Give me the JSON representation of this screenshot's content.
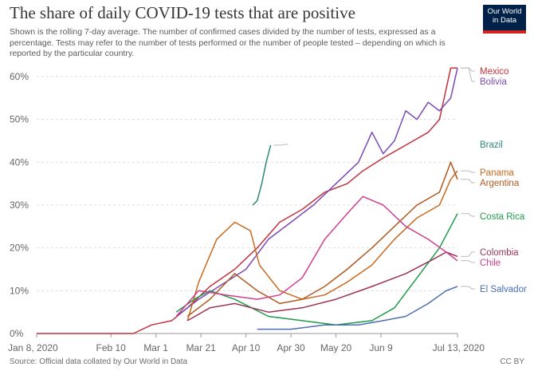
{
  "header": {
    "title": "The share of daily COVID-19 tests that are positive",
    "subtitle": "Shown is the rolling 7-day average. The number of confirmed cases divided by the number of tests, expressed as a percentage. Tests may refer to the number of tests performed or the number of people tested – depending on which is reported by the particular country."
  },
  "logo": {
    "line1": "Our World",
    "line2": "in Data"
  },
  "footer": {
    "source": "Source: Official data collated by Our World in Data",
    "license": "CC BY"
  },
  "chart_data": {
    "type": "line",
    "title": "The share of daily COVID-19 tests that are positive",
    "xlabel": "",
    "ylabel": "",
    "x_ticks": [
      "Jan 8, 2020",
      "Feb 10",
      "Mar 1",
      "Mar 21",
      "Apr 10",
      "Apr 30",
      "May 20",
      "Jun 9",
      "Jul 13, 2020"
    ],
    "y_ticks": [
      "0%",
      "10%",
      "20%",
      "30%",
      "40%",
      "50%",
      "60%"
    ],
    "ylim": [
      0,
      60
    ],
    "grid": "horizontal dashed",
    "legend": "direct labels at right",
    "series": [
      {
        "name": "Mexico",
        "color": "#c2323b",
        "points": [
          [
            "2020-01-08",
            0
          ],
          [
            "2020-02-20",
            0
          ],
          [
            "2020-02-28",
            2
          ],
          [
            "2020-03-08",
            3
          ],
          [
            "2020-03-15",
            6
          ],
          [
            "2020-03-25",
            11
          ],
          [
            "2020-04-05",
            15
          ],
          [
            "2020-04-15",
            20
          ],
          [
            "2020-04-25",
            26
          ],
          [
            "2020-05-05",
            29
          ],
          [
            "2020-05-15",
            33
          ],
          [
            "2020-05-25",
            35
          ],
          [
            "2020-06-01",
            38
          ],
          [
            "2020-06-10",
            41
          ],
          [
            "2020-06-20",
            44
          ],
          [
            "2020-06-30",
            47
          ],
          [
            "2020-07-05",
            50
          ],
          [
            "2020-07-10",
            62
          ],
          [
            "2020-07-13",
            62
          ]
        ]
      },
      {
        "name": "Bolivia",
        "color": "#7b4ab3",
        "points": [
          [
            "2020-03-10",
            4
          ],
          [
            "2020-03-20",
            8
          ],
          [
            "2020-04-01",
            12
          ],
          [
            "2020-04-10",
            15
          ],
          [
            "2020-04-20",
            22
          ],
          [
            "2020-04-30",
            26
          ],
          [
            "2020-05-10",
            30
          ],
          [
            "2020-05-20",
            35
          ],
          [
            "2020-05-30",
            40
          ],
          [
            "2020-06-05",
            47
          ],
          [
            "2020-06-10",
            42
          ],
          [
            "2020-06-15",
            45
          ],
          [
            "2020-06-20",
            52
          ],
          [
            "2020-06-25",
            50
          ],
          [
            "2020-06-30",
            54
          ],
          [
            "2020-07-05",
            52
          ],
          [
            "2020-07-10",
            55
          ],
          [
            "2020-07-13",
            62
          ]
        ]
      },
      {
        "name": "Brazil",
        "color": "#2b8a76",
        "points": [
          [
            "2020-04-13",
            30
          ],
          [
            "2020-04-15",
            31
          ],
          [
            "2020-04-17",
            35
          ],
          [
            "2020-04-19",
            40
          ],
          [
            "2020-04-21",
            44
          ]
        ]
      },
      {
        "name": "Panama",
        "color": "#c86a1e",
        "points": [
          [
            "2020-03-15",
            3
          ],
          [
            "2020-03-20",
            12
          ],
          [
            "2020-03-28",
            22
          ],
          [
            "2020-04-05",
            26
          ],
          [
            "2020-04-12",
            24
          ],
          [
            "2020-04-16",
            16
          ],
          [
            "2020-04-25",
            10
          ],
          [
            "2020-05-05",
            8
          ],
          [
            "2020-05-15",
            9
          ],
          [
            "2020-05-25",
            12
          ],
          [
            "2020-06-05",
            16
          ],
          [
            "2020-06-15",
            22
          ],
          [
            "2020-06-25",
            27
          ],
          [
            "2020-07-05",
            30
          ],
          [
            "2020-07-10",
            36
          ],
          [
            "2020-07-13",
            38
          ]
        ]
      },
      {
        "name": "Argentina",
        "color": "#b05a20",
        "points": [
          [
            "2020-03-15",
            4
          ],
          [
            "2020-03-25",
            8
          ],
          [
            "2020-04-05",
            14
          ],
          [
            "2020-04-15",
            10
          ],
          [
            "2020-04-25",
            7
          ],
          [
            "2020-05-05",
            8
          ],
          [
            "2020-05-15",
            11
          ],
          [
            "2020-05-25",
            15
          ],
          [
            "2020-06-05",
            20
          ],
          [
            "2020-06-15",
            25
          ],
          [
            "2020-06-25",
            30
          ],
          [
            "2020-07-05",
            33
          ],
          [
            "2020-07-10",
            40
          ],
          [
            "2020-07-13",
            36
          ]
        ]
      },
      {
        "name": "Costa Rica",
        "color": "#1f9a4a",
        "points": [
          [
            "2020-03-10",
            5
          ],
          [
            "2020-03-18",
            8
          ],
          [
            "2020-03-25",
            10
          ],
          [
            "2020-04-05",
            8
          ],
          [
            "2020-04-20",
            4
          ],
          [
            "2020-05-05",
            3
          ],
          [
            "2020-05-20",
            2
          ],
          [
            "2020-06-05",
            3
          ],
          [
            "2020-06-15",
            6
          ],
          [
            "2020-06-25",
            13
          ],
          [
            "2020-07-05",
            20
          ],
          [
            "2020-07-10",
            25
          ],
          [
            "2020-07-13",
            28
          ]
        ]
      },
      {
        "name": "Colombia",
        "color": "#9a3553",
        "points": [
          [
            "2020-03-15",
            3
          ],
          [
            "2020-03-25",
            6
          ],
          [
            "2020-04-05",
            7
          ],
          [
            "2020-04-20",
            5
          ],
          [
            "2020-05-05",
            6
          ],
          [
            "2020-05-20",
            8
          ],
          [
            "2020-06-05",
            11
          ],
          [
            "2020-06-20",
            14
          ],
          [
            "2020-07-01",
            17
          ],
          [
            "2020-07-08",
            19
          ],
          [
            "2020-07-13",
            18
          ]
        ]
      },
      {
        "name": "Chile",
        "color": "#cf3f8e",
        "points": [
          [
            "2020-03-10",
            4
          ],
          [
            "2020-03-20",
            10
          ],
          [
            "2020-04-01",
            9
          ],
          [
            "2020-04-15",
            8
          ],
          [
            "2020-04-25",
            9
          ],
          [
            "2020-05-05",
            13
          ],
          [
            "2020-05-15",
            22
          ],
          [
            "2020-05-25",
            28
          ],
          [
            "2020-06-01",
            32
          ],
          [
            "2020-06-10",
            30
          ],
          [
            "2020-06-20",
            25
          ],
          [
            "2020-06-30",
            22
          ],
          [
            "2020-07-08",
            19
          ],
          [
            "2020-07-13",
            17
          ]
        ]
      },
      {
        "name": "El Salvador",
        "color": "#4b6fb0",
        "points": [
          [
            "2020-04-15",
            1
          ],
          [
            "2020-04-30",
            1
          ],
          [
            "2020-05-15",
            2
          ],
          [
            "2020-05-30",
            2
          ],
          [
            "2020-06-10",
            3
          ],
          [
            "2020-06-20",
            4
          ],
          [
            "2020-06-30",
            7
          ],
          [
            "2020-07-08",
            10
          ],
          [
            "2020-07-13",
            11
          ]
        ]
      }
    ]
  }
}
